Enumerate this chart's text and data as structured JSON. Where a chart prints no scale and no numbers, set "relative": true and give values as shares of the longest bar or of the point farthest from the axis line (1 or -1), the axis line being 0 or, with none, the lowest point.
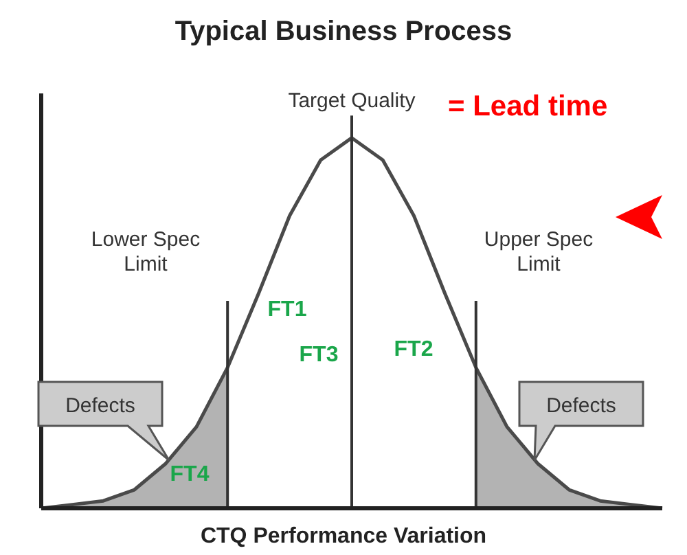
{
  "chart_data": {
    "type": "line",
    "title": "Typical Business Process",
    "xlabel": "CTQ Performance Variation",
    "relative": true,
    "categories": [
      null,
      null,
      null,
      null,
      null,
      null,
      null,
      null,
      null,
      null,
      null,
      null,
      null,
      null,
      null,
      null,
      null,
      null,
      null,
      null,
      null
    ],
    "series": [
      {
        "color": "#4a4a4a",
        "values": [
          0,
          0.01,
          0.02,
          0.05,
          0.12,
          0.22,
          0.38,
          0.58,
          0.79,
          0.94,
          1,
          0.94,
          0.79,
          0.58,
          0.38,
          0.22,
          0.12,
          0.05,
          0.02,
          0.01,
          0
        ]
      },
      {
        "type": "area",
        "color": "#b3b3b3",
        "values": [
          0,
          0.01,
          0.02,
          0.05,
          0.12,
          0.22,
          0.38,
          null,
          null,
          null,
          null,
          null,
          null,
          null,
          null,
          null,
          null,
          null,
          null,
          null,
          null
        ]
      },
      {
        "type": "area",
        "color": "#b3b3b3",
        "values": [
          null,
          null,
          null,
          null,
          null,
          null,
          null,
          null,
          null,
          null,
          null,
          null,
          null,
          null,
          0.38,
          0.22,
          0.12,
          0.05,
          0.02,
          0.01,
          0
        ]
      }
    ],
    "annotations": [
      "Target Quality",
      "Lower Spec Limit",
      "Upper Spec Limit",
      "FT1",
      "FT3",
      "FT2",
      "FT4",
      "Defects",
      "Defects",
      "= Lead time"
    ]
  }
}
